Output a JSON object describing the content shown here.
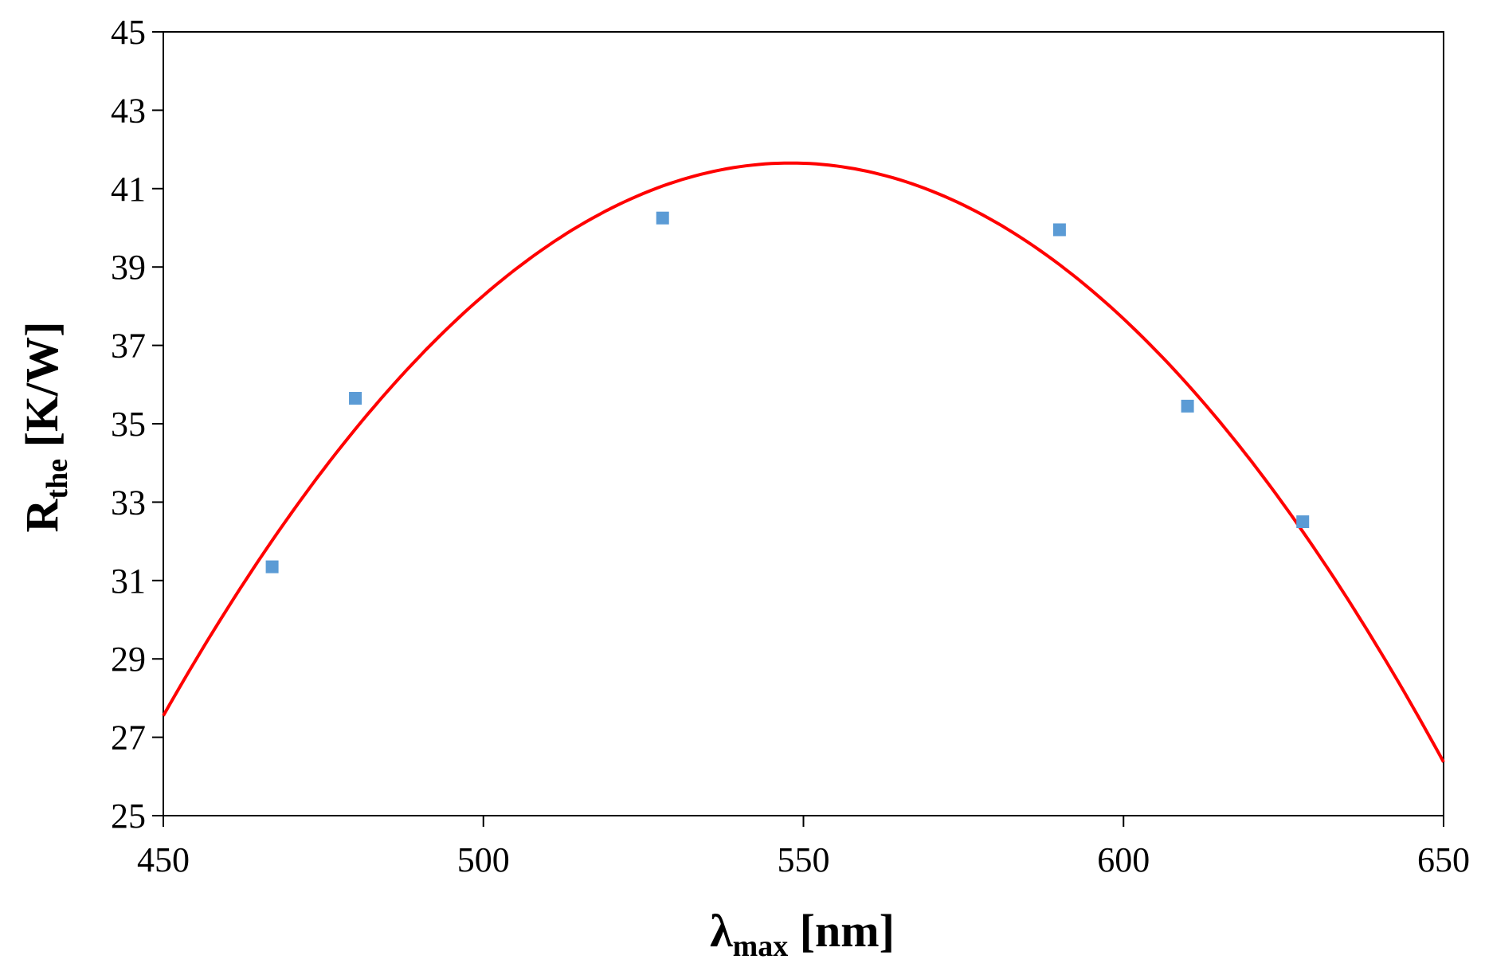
{
  "colors": {
    "fit_line": "#ff0000",
    "markers": "#5b9bd5",
    "axis": "#000000",
    "background": "#ffffff"
  },
  "chart_data": {
    "type": "scatter",
    "title": "",
    "xlabel": {
      "main": "λ",
      "sub": "max",
      "unit": " [nm]"
    },
    "ylabel": {
      "main": "R",
      "sub": "the",
      "unit": " [K/W]"
    },
    "xlim": [
      450,
      650
    ],
    "ylim": [
      25,
      45
    ],
    "xticks": [
      450,
      500,
      550,
      600,
      650
    ],
    "yticks": [
      25,
      27,
      29,
      31,
      33,
      35,
      37,
      39,
      41,
      43,
      45
    ],
    "grid": false,
    "legend": "none",
    "series": [
      {
        "kind": "scatter",
        "marker": "square",
        "x": [
          467,
          480,
          528,
          590,
          610,
          628
        ],
        "y": [
          31.35,
          35.65,
          40.25,
          39.95,
          35.45,
          32.5
        ]
      },
      {
        "kind": "fit-curve",
        "style": "quadratic trend line",
        "x": [
          450,
          475,
          500,
          525,
          548,
          575,
          600,
          625,
          650
        ],
        "y": [
          27.3,
          34.2,
          38.4,
          40.8,
          41.35,
          40.5,
          37.9,
          33.0,
          26.3
        ]
      }
    ]
  }
}
